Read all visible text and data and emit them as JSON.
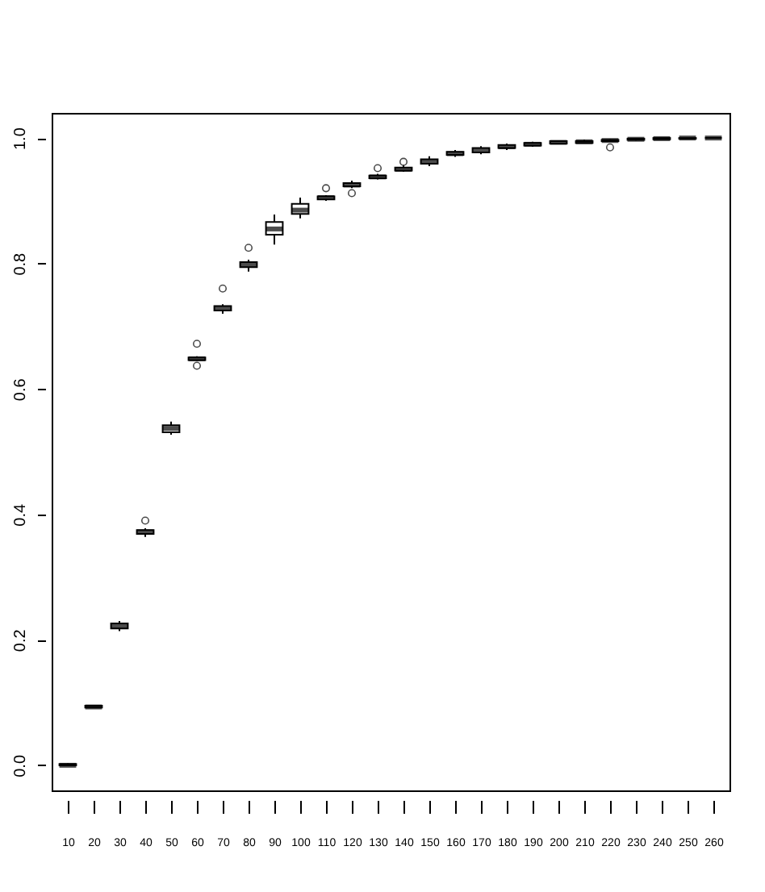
{
  "chart_data": {
    "type": "box",
    "categories": [
      "10",
      "20",
      "30",
      "40",
      "50",
      "60",
      "70",
      "80",
      "90",
      "100",
      "110",
      "120",
      "130",
      "140",
      "150",
      "160",
      "170",
      "180",
      "190",
      "200",
      "210",
      "220",
      "230",
      "240",
      "250",
      "260"
    ],
    "boxes": [
      {
        "low": 0,
        "q1": 0,
        "median": 0,
        "q3": 0.002,
        "high": 0.003
      },
      {
        "low": 0.091,
        "q1": 0.092,
        "median": 0.093,
        "q3": 0.095,
        "high": 0.096
      },
      {
        "low": 0.214,
        "q1": 0.218,
        "median": 0.222,
        "q3": 0.226,
        "high": 0.23
      },
      {
        "low": 0.364,
        "q1": 0.369,
        "median": 0.372,
        "q3": 0.375,
        "high": 0.378,
        "outliers": [
          0.39
        ]
      },
      {
        "low": 0.527,
        "q1": 0.531,
        "median": 0.537,
        "q3": 0.542,
        "high": 0.548
      },
      {
        "low": 0.645,
        "q1": 0.646,
        "median": 0.648,
        "q3": 0.65,
        "high": 0.652,
        "outliers": [
          0.672,
          0.637
        ]
      },
      {
        "low": 0.72,
        "q1": 0.725,
        "median": 0.729,
        "q3": 0.732,
        "high": 0.735,
        "outliers": [
          0.76
        ]
      },
      {
        "low": 0.787,
        "q1": 0.794,
        "median": 0.798,
        "q3": 0.802,
        "high": 0.806,
        "outliers": [
          0.825
        ]
      },
      {
        "low": 0.83,
        "q1": 0.846,
        "median": 0.855,
        "q3": 0.866,
        "high": 0.878
      },
      {
        "low": 0.872,
        "q1": 0.879,
        "median": 0.885,
        "q3": 0.895,
        "high": 0.905
      },
      {
        "low": 0.9,
        "q1": 0.902,
        "median": 0.905,
        "q3": 0.907,
        "high": 0.909,
        "outliers": [
          0.92
        ]
      },
      {
        "low": 0.92,
        "q1": 0.923,
        "median": 0.925,
        "q3": 0.928,
        "high": 0.932,
        "outliers": [
          0.912
        ]
      },
      {
        "low": 0.934,
        "q1": 0.936,
        "median": 0.938,
        "q3": 0.94,
        "high": 0.943,
        "outliers": [
          0.952
        ]
      },
      {
        "low": 0.946,
        "q1": 0.948,
        "median": 0.95,
        "q3": 0.953,
        "high": 0.956,
        "outliers": [
          0.962
        ]
      },
      {
        "low": 0.955,
        "q1": 0.959,
        "median": 0.962,
        "q3": 0.966,
        "high": 0.971
      },
      {
        "low": 0.97,
        "q1": 0.973,
        "median": 0.975,
        "q3": 0.978,
        "high": 0.981
      },
      {
        "low": 0.974,
        "q1": 0.977,
        "median": 0.98,
        "q3": 0.984,
        "high": 0.987
      },
      {
        "low": 0.981,
        "q1": 0.984,
        "median": 0.986,
        "q3": 0.989,
        "high": 0.991
      },
      {
        "low": 0.986,
        "q1": 0.988,
        "median": 0.99,
        "q3": 0.992,
        "high": 0.994
      },
      {
        "low": 0.99,
        "q1": 0.991,
        "median": 0.993,
        "q3": 0.995,
        "high": 0.996
      },
      {
        "low": 0.991,
        "q1": 0.992,
        "median": 0.994,
        "q3": 0.995,
        "high": 0.997
      },
      {
        "low": 0.994,
        "q1": 0.995,
        "median": 0.996,
        "q3": 0.997,
        "high": 0.998,
        "outliers": [
          0.985
        ]
      },
      {
        "low": 0.996,
        "q1": 0.997,
        "median": 0.998,
        "q3": 0.999,
        "high": 1.0
      },
      {
        "low": 0.998,
        "q1": 0.998,
        "median": 0.999,
        "q3": 1.0,
        "high": 1.0
      },
      {
        "low": 0.999,
        "q1": 0.999,
        "median": 1.0,
        "q3": 1.0,
        "high": 1.0
      },
      {
        "low": 1.0,
        "q1": 1.0,
        "median": 1.0,
        "q3": 1.0,
        "high": 1.0
      }
    ],
    "ylim": [
      -0.04,
      1.04
    ],
    "yticks": [
      {
        "value": 0,
        "label": "0.0"
      },
      0.2,
      0.4,
      0.6,
      0.8,
      {
        "value": 1,
        "label": "1.0"
      }
    ]
  }
}
